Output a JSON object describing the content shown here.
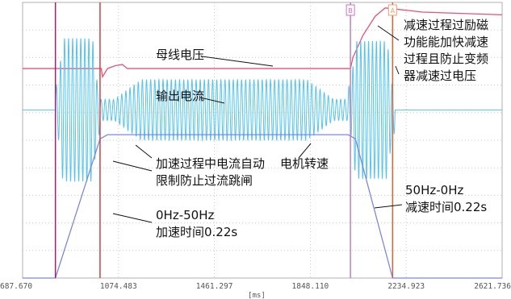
{
  "chart_data": {
    "type": "line",
    "x_unit": "[ms]",
    "xlim": [
      687.67,
      2621.736
    ],
    "x_ticks": [
      "687.670",
      "1074.483",
      "1461.297",
      "1848.110",
      "2234.923",
      "2621.736"
    ],
    "grid": true,
    "cursors": [
      {
        "label": "B",
        "x": 2010,
        "color": "#d070c0"
      },
      {
        "label": "A",
        "x": 2180,
        "color": "#f0a070"
      }
    ],
    "event_markers": [
      {
        "x": 820,
        "color": "#a02070"
      },
      {
        "x": 1000,
        "color": "#d04040"
      },
      {
        "x": 2010,
        "color": "#c080c0"
      },
      {
        "x": 2180,
        "color": "#e06030"
      }
    ],
    "series": [
      {
        "name": "母线电压",
        "color": "#e8507a",
        "points": [
          [
            687.67,
            0.76
          ],
          [
            1005,
            0.76
          ],
          [
            1010,
            0.73
          ],
          [
            1030,
            0.76
          ],
          [
            1060,
            0.77
          ],
          [
            1090,
            0.775
          ],
          [
            1110,
            0.76
          ],
          [
            1990,
            0.76
          ],
          [
            2010,
            0.76
          ],
          [
            2020,
            0.8
          ],
          [
            2060,
            0.88
          ],
          [
            2110,
            0.95
          ],
          [
            2150,
            0.98
          ],
          [
            2200,
            0.975
          ],
          [
            2300,
            0.965
          ],
          [
            2621.7,
            0.955
          ]
        ]
      },
      {
        "name": "输出电流",
        "color": "#55c4ec",
        "baseline": 0.61,
        "points": [
          [
            687.67,
            0.61
          ],
          [
            820,
            0.61
          ],
          [
            2190,
            0.61
          ],
          [
            2621.7,
            0.61
          ]
        ],
        "oscillation": [
          {
            "x_start": 820,
            "x_end": 1000,
            "amplitude": 0.26,
            "cycles": 11
          },
          {
            "x_start": 1000,
            "x_end": 2000,
            "amplitude": 0.11,
            "cycles": 60
          },
          {
            "x_start": 2000,
            "x_end": 2190,
            "amplitude": 0.25,
            "cycles": 12
          }
        ]
      },
      {
        "name": "电机转速",
        "color": "#7c88e0",
        "points": [
          [
            687.67,
            0.0
          ],
          [
            820,
            0.0
          ],
          [
            1000,
            0.505
          ],
          [
            1030,
            0.52
          ],
          [
            2000,
            0.52
          ],
          [
            2030,
            0.505
          ],
          [
            2180,
            0.0
          ],
          [
            2621.7,
            0.0
          ]
        ]
      }
    ],
    "annotations": [
      {
        "text": "母线电压"
      },
      {
        "text": "输出电流"
      },
      {
        "lines": [
          "减速过程过励磁",
          "功能能加快减速",
          "过程且防止变频",
          "器减速过电压"
        ]
      },
      {
        "lines": [
          "加速过程中电流自动",
          "限制防止过流跳闸"
        ]
      },
      {
        "text": "电机转速"
      },
      {
        "lines": [
          "50Hz-0Hz",
          "减速时间0.22s"
        ]
      },
      {
        "lines": [
          "0Hz-50Hz",
          "加速时间0.22s"
        ]
      }
    ]
  }
}
